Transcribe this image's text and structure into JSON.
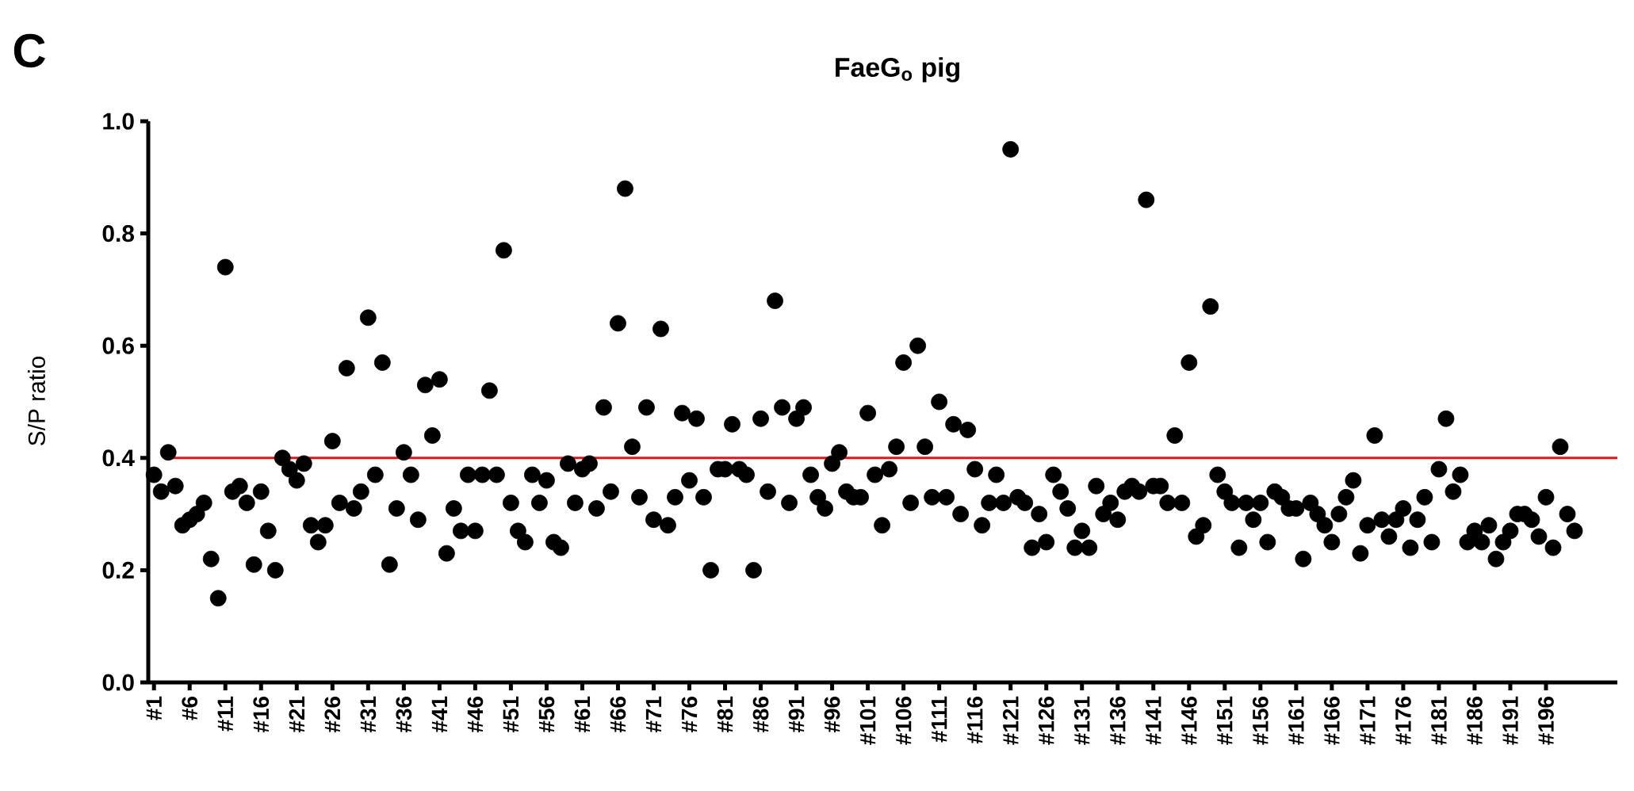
{
  "chart_data": {
    "type": "scatter",
    "title": "FaeG$_{o}$ pig",
    "ylabel": "S/P ratio",
    "annotations": [
      "C"
    ],
    "categories": [
      "#1",
      null,
      null,
      null,
      null,
      "#6",
      null,
      null,
      null,
      null,
      "#11",
      null,
      null,
      null,
      null,
      "#16",
      null,
      null,
      null,
      null,
      "#21",
      null,
      null,
      null,
      null,
      "#26",
      null,
      null,
      null,
      null,
      "#31",
      null,
      null,
      null,
      null,
      "#36",
      null,
      null,
      null,
      null,
      "#41",
      null,
      null,
      null,
      null,
      "#46",
      null,
      null,
      null,
      null,
      "#51",
      null,
      null,
      null,
      null,
      "#56",
      null,
      null,
      null,
      null,
      "#61",
      null,
      null,
      null,
      null,
      "#66",
      null,
      null,
      null,
      null,
      "#71",
      null,
      null,
      null,
      null,
      "#76",
      null,
      null,
      null,
      null,
      "#81",
      null,
      null,
      null,
      null,
      "#86",
      null,
      null,
      null,
      null,
      "#91",
      null,
      null,
      null,
      null,
      "#96",
      null,
      null,
      null,
      null,
      "#101",
      null,
      null,
      null,
      null,
      "#106",
      null,
      null,
      null,
      null,
      "#111",
      null,
      null,
      null,
      null,
      "#116",
      null,
      null,
      null,
      null,
      "#121",
      null,
      null,
      null,
      null,
      "#126",
      null,
      null,
      null,
      null,
      "#131",
      null,
      null,
      null,
      null,
      "#136",
      null,
      null,
      null,
      null,
      "#141",
      null,
      null,
      null,
      null,
      "#146",
      null,
      null,
      null,
      null,
      "#151",
      null,
      null,
      null,
      null,
      "#156",
      null,
      null,
      null,
      null,
      "#161",
      null,
      null,
      null,
      null,
      "#166",
      null,
      null,
      null,
      null,
      "#171",
      null,
      null,
      null,
      null,
      "#176",
      null,
      null,
      null,
      null,
      "#181",
      null,
      null,
      null,
      null,
      "#186",
      null,
      null,
      null,
      null,
      "#191",
      null,
      null,
      null,
      null,
      "#196",
      null,
      null,
      null,
      null
    ],
    "values": [
      0.37,
      0.34,
      0.41,
      0.35,
      0.28,
      0.29,
      0.3,
      0.32,
      0.22,
      0.15,
      0.74,
      0.34,
      0.35,
      0.32,
      0.21,
      0.34,
      0.27,
      0.2,
      0.4,
      0.38,
      0.36,
      0.39,
      0.28,
      0.25,
      0.28,
      0.43,
      0.32,
      0.56,
      0.31,
      0.34,
      0.65,
      0.37,
      0.57,
      0.21,
      0.31,
      0.41,
      0.37,
      0.29,
      0.53,
      0.44,
      0.54,
      0.23,
      0.31,
      0.27,
      0.37,
      0.27,
      0.37,
      0.52,
      0.37,
      0.77,
      0.32,
      0.27,
      0.25,
      0.37,
      0.32,
      0.36,
      0.25,
      0.24,
      0.39,
      0.32,
      0.38,
      0.39,
      0.31,
      0.49,
      0.34,
      0.64,
      0.88,
      0.42,
      0.33,
      0.49,
      0.29,
      0.63,
      0.28,
      0.33,
      0.48,
      0.36,
      0.47,
      0.33,
      0.2,
      0.38,
      0.38,
      0.46,
      0.38,
      0.37,
      0.2,
      0.47,
      0.34,
      0.68,
      0.49,
      0.32,
      0.47,
      0.49,
      0.37,
      0.33,
      0.31,
      0.39,
      0.41,
      0.34,
      0.33,
      0.33,
      0.48,
      0.37,
      0.28,
      0.38,
      0.42,
      0.57,
      0.32,
      0.6,
      0.42,
      0.33,
      0.5,
      0.33,
      0.46,
      0.3,
      0.45,
      0.38,
      0.28,
      0.32,
      0.37,
      0.32,
      0.95,
      0.33,
      0.32,
      0.24,
      0.3,
      0.25,
      0.37,
      0.34,
      0.31,
      0.24,
      0.27,
      0.24,
      0.35,
      0.3,
      0.32,
      0.29,
      0.34,
      0.35,
      0.34,
      0.86,
      0.35,
      0.35,
      0.32,
      0.44,
      0.32,
      0.57,
      0.26,
      0.28,
      0.67,
      0.37,
      0.34,
      0.32,
      0.24,
      0.32,
      0.29,
      0.32,
      0.25,
      0.34,
      0.33,
      0.31,
      0.31,
      0.22,
      0.32,
      0.3,
      0.28,
      0.25,
      0.3,
      0.33,
      0.36,
      0.23,
      0.28,
      0.44,
      0.29,
      0.26,
      0.29,
      0.31,
      0.24,
      0.29,
      0.33,
      0.25,
      0.38,
      0.47,
      0.34,
      0.37,
      0.25,
      0.27,
      0.25,
      0.28,
      0.22,
      0.25,
      0.27,
      0.3,
      0.3,
      0.29,
      0.26,
      0.33,
      0.24,
      0.42,
      0.3,
      0.27
    ],
    "color": "#000000",
    "marker": "circle",
    "ylim": [
      0,
      1
    ],
    "yticks": [
      {
        "value": 0,
        "label": "0.0"
      },
      {
        "value": 0.2,
        "label": "0.2"
      },
      {
        "value": 0.4,
        "label": "0.4"
      },
      {
        "value": 0.6,
        "label": "0.6"
      },
      {
        "value": 0.8,
        "label": "0.8"
      },
      {
        "value": 1,
        "label": "1.0"
      }
    ],
    "ref_lines": [
      {
        "axis": "y",
        "value": 0.4,
        "color": "#e8141c"
      }
    ]
  }
}
